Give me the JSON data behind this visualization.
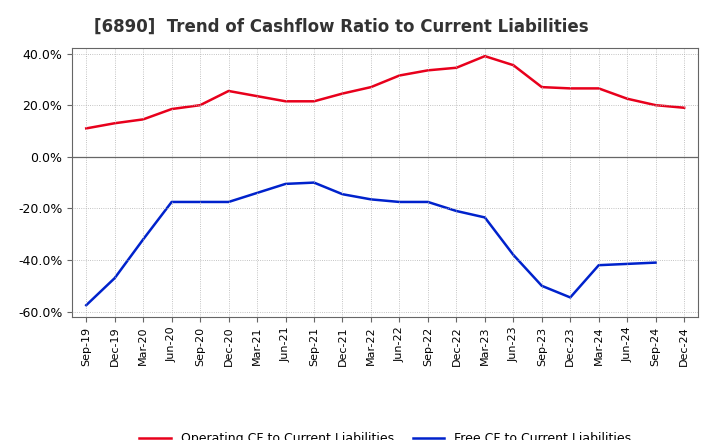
{
  "title": "[6890]  Trend of Cashflow Ratio to Current Liabilities",
  "x_labels": [
    "Sep-19",
    "Dec-19",
    "Mar-20",
    "Jun-20",
    "Sep-20",
    "Dec-20",
    "Mar-21",
    "Jun-21",
    "Sep-21",
    "Dec-21",
    "Mar-22",
    "Jun-22",
    "Sep-22",
    "Dec-22",
    "Mar-23",
    "Jun-23",
    "Sep-23",
    "Dec-23",
    "Mar-24",
    "Jun-24",
    "Sep-24",
    "Dec-24"
  ],
  "operating_cf": [
    0.11,
    0.13,
    0.145,
    0.185,
    0.2,
    0.255,
    0.235,
    0.215,
    0.215,
    0.245,
    0.27,
    0.315,
    0.335,
    0.345,
    0.39,
    0.355,
    0.27,
    0.265,
    0.265,
    0.225,
    0.2,
    0.19
  ],
  "free_cf_x": [
    0,
    1,
    2,
    3,
    4,
    5,
    6,
    7,
    8,
    9,
    10,
    11,
    12,
    13,
    14,
    15,
    16,
    17,
    18,
    20
  ],
  "free_cf": [
    -0.575,
    -0.47,
    -0.32,
    -0.175,
    -0.175,
    -0.175,
    -0.14,
    -0.105,
    -0.1,
    -0.145,
    -0.165,
    -0.175,
    -0.175,
    -0.21,
    -0.235,
    -0.38,
    -0.5,
    -0.545,
    -0.42,
    -0.41
  ],
  "operating_color": "#e8001c",
  "free_color": "#0022cc",
  "ylim": [
    -0.62,
    0.42
  ],
  "yticks": [
    -0.6,
    -0.4,
    -0.2,
    0.0,
    0.2,
    0.4
  ],
  "bg_color": "#ffffff",
  "plot_bg_color": "#ffffff",
  "grid_color": "#b0b0b0",
  "legend_op": "Operating CF to Current Liabilities",
  "legend_free": "Free CF to Current Liabilities",
  "title_fontsize": 12,
  "title_color": "#333333"
}
